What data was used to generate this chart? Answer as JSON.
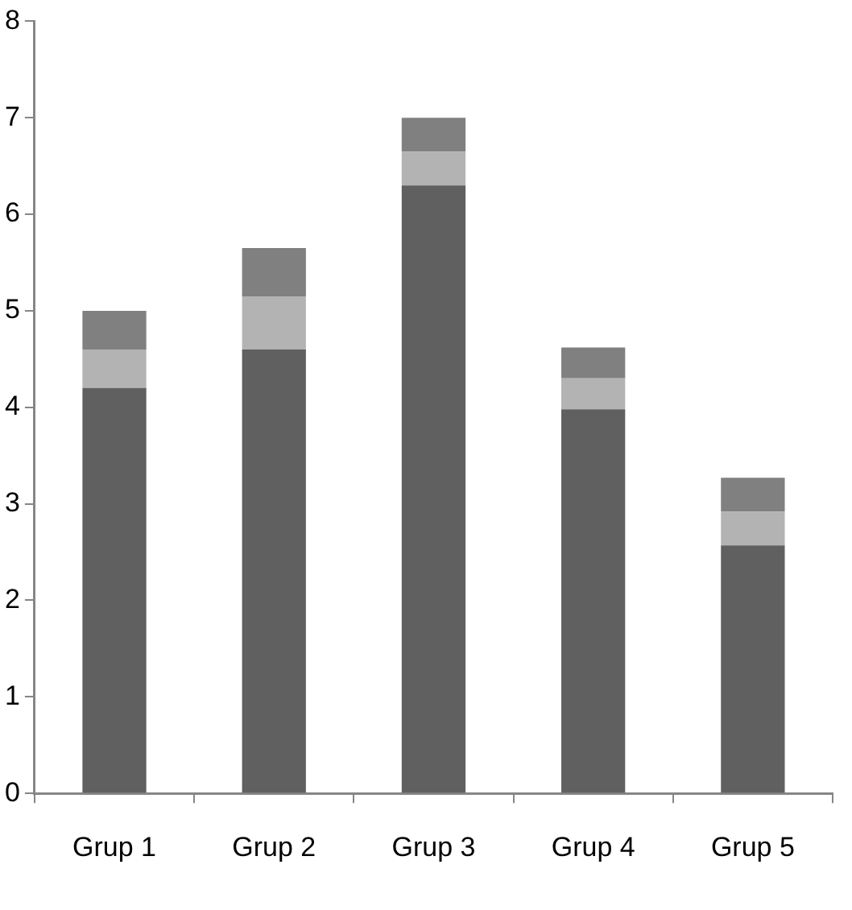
{
  "chart_data": {
    "type": "bar",
    "stacked": true,
    "categories": [
      "Grup 1",
      "Grup 2",
      "Grup 3",
      "Grup 4",
      "Grup 5"
    ],
    "series": [
      {
        "color": "#606060",
        "values": [
          4.2,
          4.6,
          6.3,
          3.98,
          2.57
        ]
      },
      {
        "color": "#b3b3b3",
        "values": [
          0.4,
          0.55,
          0.35,
          0.32,
          0.35
        ]
      },
      {
        "color": "#808080",
        "values": [
          0.4,
          0.5,
          0.35,
          0.32,
          0.35
        ]
      }
    ],
    "ylim": [
      0,
      8
    ],
    "yticks": [
      0,
      1,
      2,
      3,
      4,
      5,
      6,
      7,
      8
    ],
    "grid": false,
    "legend": false
  }
}
